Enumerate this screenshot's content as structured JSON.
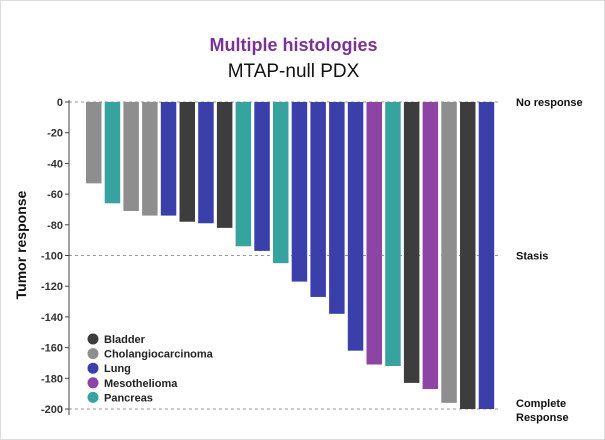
{
  "chart_data": {
    "type": "bar",
    "title": "Multiple histologies",
    "subtitle": "MTAP-null PDX",
    "ylabel": "Tumor response",
    "ylim": [
      -200,
      0
    ],
    "yticks": [
      0,
      -20,
      -40,
      -60,
      -80,
      -100,
      -120,
      -140,
      -160,
      -180,
      -200
    ],
    "reference_lines": [
      {
        "value": 0,
        "label": "No response"
      },
      {
        "value": -100,
        "label": "Stasis"
      },
      {
        "value": -200,
        "label": "Complete Response"
      }
    ],
    "legend": [
      {
        "name": "Bladder",
        "color": "#3d3d3d"
      },
      {
        "name": "Cholangiocarcinoma",
        "color": "#8e8e8e"
      },
      {
        "name": "Lung",
        "color": "#3a3faa"
      },
      {
        "name": "Mesothelioma",
        "color": "#8e44a5"
      },
      {
        "name": "Pancreas",
        "color": "#36a39f"
      }
    ],
    "bars": [
      {
        "histology": "Cholangiocarcinoma",
        "value": -53
      },
      {
        "histology": "Pancreas",
        "value": -66
      },
      {
        "histology": "Cholangiocarcinoma",
        "value": -71
      },
      {
        "histology": "Cholangiocarcinoma",
        "value": -74
      },
      {
        "histology": "Lung",
        "value": -74
      },
      {
        "histology": "Bladder",
        "value": -78
      },
      {
        "histology": "Lung",
        "value": -79
      },
      {
        "histology": "Bladder",
        "value": -82
      },
      {
        "histology": "Pancreas",
        "value": -94
      },
      {
        "histology": "Lung",
        "value": -97
      },
      {
        "histology": "Pancreas",
        "value": -105
      },
      {
        "histology": "Lung",
        "value": -117
      },
      {
        "histology": "Lung",
        "value": -127
      },
      {
        "histology": "Lung",
        "value": -138
      },
      {
        "histology": "Lung",
        "value": -162
      },
      {
        "histology": "Mesothelioma",
        "value": -171
      },
      {
        "histology": "Pancreas",
        "value": -172
      },
      {
        "histology": "Bladder",
        "value": -183
      },
      {
        "histology": "Mesothelioma",
        "value": -187
      },
      {
        "histology": "Cholangiocarcinoma",
        "value": -196
      },
      {
        "histology": "Bladder",
        "value": -200
      },
      {
        "histology": "Lung",
        "value": -200
      }
    ]
  }
}
